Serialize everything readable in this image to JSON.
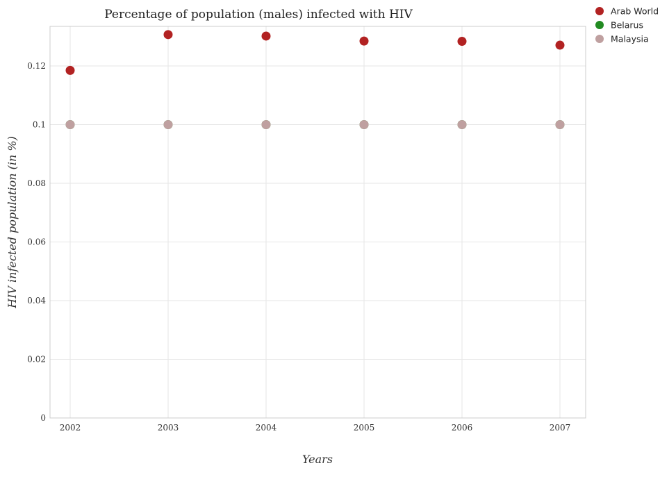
{
  "chart_data": {
    "type": "scatter",
    "title": "Percentage of population (males) infected with HIV",
    "xlabel": "Years",
    "ylabel": "HIV infected population (in %)",
    "categories": [
      "2002",
      "2003",
      "2004",
      "2005",
      "2006",
      "2007"
    ],
    "ylim": [
      0,
      0.1335
    ],
    "yticks": [
      0,
      0.02,
      0.04,
      0.06,
      0.08,
      0.1,
      0.12
    ],
    "ytick_labels": [
      "0",
      "0.02",
      "0.04",
      "0.06",
      "0.08",
      "0.1",
      "0.12"
    ],
    "grid": true,
    "legend_position": "top-right",
    "series": [
      {
        "name": "Arab World",
        "color": "#b22222",
        "values": [
          0.1185,
          0.1307,
          0.1302,
          0.1285,
          0.1284,
          0.1271
        ]
      },
      {
        "name": "Belarus",
        "color": "#228b22",
        "values": [
          0.1,
          0.1,
          0.1,
          0.1,
          0.1,
          0.1
        ]
      },
      {
        "name": "Malaysia",
        "color": "#bfa0a0",
        "values": [
          0.1,
          0.1,
          0.1,
          0.1,
          0.1,
          0.1
        ]
      }
    ]
  }
}
